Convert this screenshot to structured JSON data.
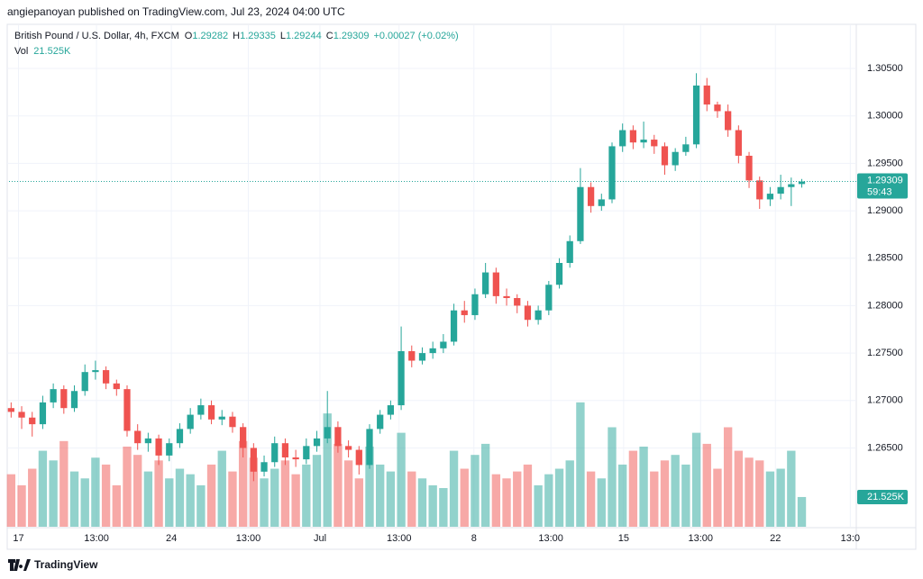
{
  "header": {
    "publisher": "angiepanoyan published on TradingView.com, Jul 23, 2024 04:00 UTC"
  },
  "footer": {
    "brand": "TradingView"
  },
  "chart_data": {
    "type": "candlestick",
    "title": "British Pound / U.S. Dollar, 4h, FXCM",
    "legend_labels": {
      "open": "O",
      "high": "H",
      "low": "L",
      "close": "C",
      "volume": "Vol"
    },
    "change": "+0.00027 (+0.02%)",
    "volume_last_label": "21.525K",
    "countdown": "59:43",
    "up_color": "#26a69a",
    "down_color": "#ef5350",
    "grid": true,
    "xlim": [
      -0.2,
      80
    ],
    "xticks": [
      {
        "value": 0.7,
        "label": "17"
      },
      {
        "value": 8.1,
        "label": "13:00"
      },
      {
        "value": 15.2,
        "label": "24"
      },
      {
        "value": 22.5,
        "label": "13:00"
      },
      {
        "value": 29.3,
        "label": "Jul"
      },
      {
        "value": 36.8,
        "label": "13:00"
      },
      {
        "value": 43.9,
        "label": "8"
      },
      {
        "value": 51.2,
        "label": "13:00"
      },
      {
        "value": 58.1,
        "label": "15"
      },
      {
        "value": 65.4,
        "label": "13:00"
      },
      {
        "value": 72.5,
        "label": "22"
      },
      {
        "value": 79.6,
        "label": "13:0"
      }
    ],
    "ylim": [
      1.25669,
      1.30956
    ],
    "yticks": [
      {
        "value": 1.265,
        "label": "1.26500"
      },
      {
        "value": 1.27,
        "label": "1.27000"
      },
      {
        "value": 1.275,
        "label": "1.27500"
      },
      {
        "value": 1.28,
        "label": "1.28000"
      },
      {
        "value": 1.285,
        "label": "1.28500"
      },
      {
        "value": 1.29,
        "label": "1.29000"
      },
      {
        "value": 1.295,
        "label": "1.29500"
      },
      {
        "value": 1.3,
        "label": "1.30000"
      },
      {
        "value": 1.305,
        "label": "1.30500"
      }
    ],
    "vlim": [
      0,
      200000
    ],
    "series": {
      "open": [
        1.2692,
        1.2688,
        1.2682,
        1.2675,
        1.2698,
        1.2712,
        1.2692,
        1.271,
        1.273,
        1.2732,
        1.2718,
        1.2712,
        1.2668,
        1.2655,
        1.266,
        1.2642,
        1.2655,
        1.267,
        1.2685,
        1.2695,
        1.268,
        1.2683,
        1.2672,
        1.265,
        1.2625,
        1.2635,
        1.2655,
        1.264,
        1.2638,
        1.2652,
        1.266,
        1.2672,
        1.2652,
        1.2648,
        1.2632,
        1.267,
        1.2685,
        1.2695,
        1.2752,
        1.2742,
        1.275,
        1.2755,
        1.2762,
        1.2795,
        1.279,
        1.2812,
        1.2835,
        1.281,
        1.2808,
        1.28,
        1.2785,
        1.2795,
        1.2822,
        1.2845,
        1.2868,
        1.2925,
        1.2905,
        1.2912,
        1.2968,
        1.2985,
        1.2972,
        1.2975,
        1.2968,
        1.2948,
        1.2962,
        1.297,
        1.3032,
        1.3012,
        1.3005,
        1.2985,
        1.2958,
        1.2932,
        1.2912,
        1.2918,
        1.2925,
        1.29282
      ],
      "high": [
        1.2698,
        1.2694,
        1.2688,
        1.2705,
        1.2718,
        1.2716,
        1.2716,
        1.2738,
        1.2742,
        1.2736,
        1.2722,
        1.2716,
        1.2675,
        1.2666,
        1.2664,
        1.266,
        1.2676,
        1.2692,
        1.2702,
        1.27,
        1.269,
        1.2688,
        1.2676,
        1.2655,
        1.2642,
        1.2662,
        1.266,
        1.2648,
        1.266,
        1.2668,
        1.271,
        1.2678,
        1.2658,
        1.2652,
        1.2675,
        1.269,
        1.27,
        1.2778,
        1.2758,
        1.2756,
        1.2762,
        1.277,
        1.2802,
        1.2805,
        1.2818,
        1.2845,
        1.284,
        1.2818,
        1.2812,
        1.2805,
        1.28,
        1.2826,
        1.285,
        1.2874,
        1.2945,
        1.293,
        1.2918,
        1.2972,
        1.2992,
        1.299,
        1.2994,
        1.298,
        1.2972,
        1.2966,
        1.2978,
        1.3045,
        1.304,
        1.3015,
        1.3012,
        1.299,
        1.2962,
        1.2936,
        1.2925,
        1.2938,
        1.2935,
        1.29335
      ],
      "low": [
        1.2682,
        1.267,
        1.2662,
        1.267,
        1.2692,
        1.2686,
        1.2688,
        1.2705,
        1.2722,
        1.2712,
        1.2705,
        1.2662,
        1.2648,
        1.2646,
        1.2632,
        1.2636,
        1.265,
        1.2665,
        1.268,
        1.2675,
        1.2674,
        1.2666,
        1.264,
        1.2615,
        1.262,
        1.263,
        1.2632,
        1.263,
        1.2633,
        1.2646,
        1.2655,
        1.2645,
        1.264,
        1.2622,
        1.2628,
        1.2665,
        1.268,
        1.269,
        1.2735,
        1.2738,
        1.2744,
        1.275,
        1.2758,
        1.2782,
        1.2785,
        1.2808,
        1.2802,
        1.28,
        1.2792,
        1.2778,
        1.278,
        1.279,
        1.2818,
        1.284,
        1.2865,
        1.2898,
        1.29,
        1.2908,
        1.2962,
        1.2965,
        1.2966,
        1.296,
        1.2938,
        1.2942,
        1.2958,
        1.2966,
        1.3005,
        1.2998,
        1.2978,
        1.295,
        1.2924,
        1.2902,
        1.2905,
        1.2912,
        1.2905,
        1.29244
      ],
      "close": [
        1.2688,
        1.2682,
        1.2675,
        1.2698,
        1.2712,
        1.2692,
        1.271,
        1.273,
        1.2732,
        1.2718,
        1.2712,
        1.2668,
        1.2655,
        1.266,
        1.2642,
        1.2655,
        1.267,
        1.2685,
        1.2695,
        1.268,
        1.2683,
        1.2672,
        1.265,
        1.2625,
        1.2635,
        1.2655,
        1.264,
        1.2638,
        1.2652,
        1.266,
        1.2672,
        1.2652,
        1.2648,
        1.2632,
        1.267,
        1.2685,
        1.2695,
        1.2752,
        1.2742,
        1.275,
        1.2755,
        1.2762,
        1.2795,
        1.279,
        1.2812,
        1.2835,
        1.281,
        1.2808,
        1.28,
        1.2785,
        1.2795,
        1.2822,
        1.2845,
        1.2868,
        1.2925,
        1.2905,
        1.2912,
        1.2968,
        1.2985,
        1.2972,
        1.2975,
        1.2968,
        1.2948,
        1.2962,
        1.297,
        1.3032,
        1.3012,
        1.3005,
        1.2985,
        1.2958,
        1.2932,
        1.2912,
        1.2918,
        1.2925,
        1.2928,
        1.29309
      ],
      "volume": [
        38000,
        30000,
        42000,
        55000,
        48000,
        62000,
        40000,
        35000,
        50000,
        45000,
        30000,
        58000,
        52000,
        40000,
        48000,
        35000,
        42000,
        38000,
        30000,
        45000,
        55000,
        40000,
        62000,
        50000,
        35000,
        42000,
        48000,
        38000,
        45000,
        52000,
        82000,
        60000,
        48000,
        35000,
        58000,
        45000,
        40000,
        68000,
        40000,
        35000,
        30000,
        28000,
        55000,
        42000,
        52000,
        60000,
        38000,
        35000,
        40000,
        45000,
        30000,
        38000,
        42000,
        48000,
        90000,
        40000,
        35000,
        72000,
        45000,
        55000,
        58000,
        40000,
        48000,
        52000,
        45000,
        68000,
        60000,
        42000,
        72000,
        55000,
        50000,
        48000,
        40000,
        42000,
        55000,
        21525
      ]
    }
  }
}
